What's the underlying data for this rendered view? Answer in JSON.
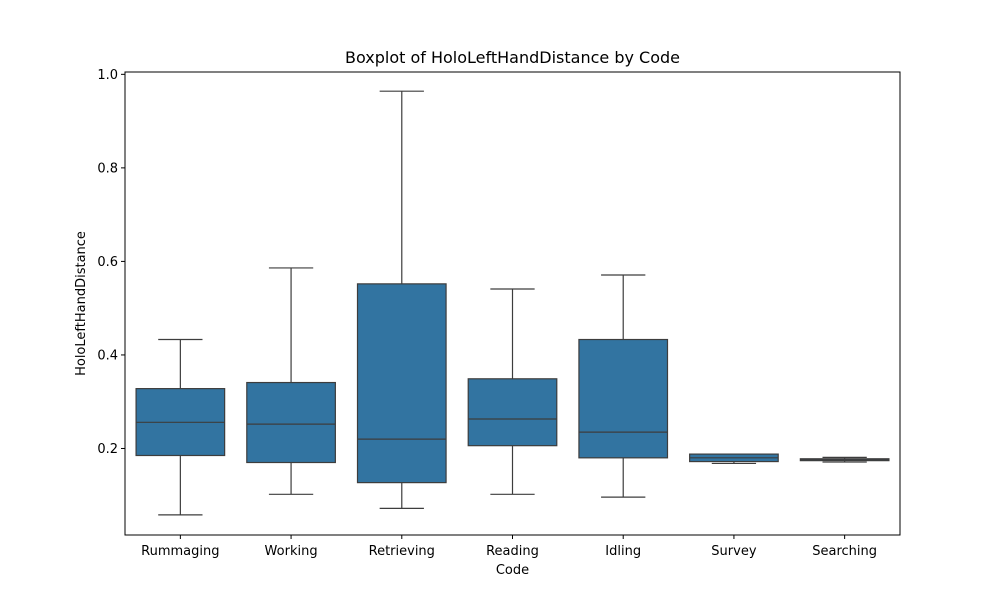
{
  "chart_data": {
    "type": "box",
    "title": "Boxplot of HoloLeftHandDistance by Code",
    "xlabel": "Code",
    "ylabel": "HoloLeftHandDistance",
    "ylim": [
      0.015,
      1.005
    ],
    "yticks": [
      0.2,
      0.4,
      0.6,
      0.8,
      1.0
    ],
    "ytick_labels": [
      "0.2",
      "0.4",
      "0.6",
      "0.8",
      "1.0"
    ],
    "categories": [
      "Rummaging",
      "Working",
      "Retrieving",
      "Reading",
      "Idling",
      "Survey",
      "Searching"
    ],
    "boxes": [
      {
        "category": "Rummaging",
        "min": 0.058,
        "q1": 0.185,
        "median": 0.256,
        "q3": 0.328,
        "max": 0.433
      },
      {
        "category": "Working",
        "min": 0.102,
        "q1": 0.17,
        "median": 0.252,
        "q3": 0.341,
        "max": 0.586
      },
      {
        "category": "Retrieving",
        "min": 0.072,
        "q1": 0.127,
        "median": 0.22,
        "q3": 0.552,
        "max": 0.964
      },
      {
        "category": "Reading",
        "min": 0.102,
        "q1": 0.206,
        "median": 0.263,
        "q3": 0.349,
        "max": 0.541
      },
      {
        "category": "Idling",
        "min": 0.096,
        "q1": 0.18,
        "median": 0.235,
        "q3": 0.433,
        "max": 0.571
      },
      {
        "category": "Survey",
        "min": 0.168,
        "q1": 0.172,
        "median": 0.18,
        "q3": 0.188,
        "max": 0.188
      },
      {
        "category": "Searching",
        "min": 0.171,
        "q1": 0.174,
        "median": 0.176,
        "q3": 0.178,
        "max": 0.181
      }
    ],
    "box_color": "#3274a1",
    "line_color": "#3d3d3d",
    "grid": false,
    "legend": false
  }
}
